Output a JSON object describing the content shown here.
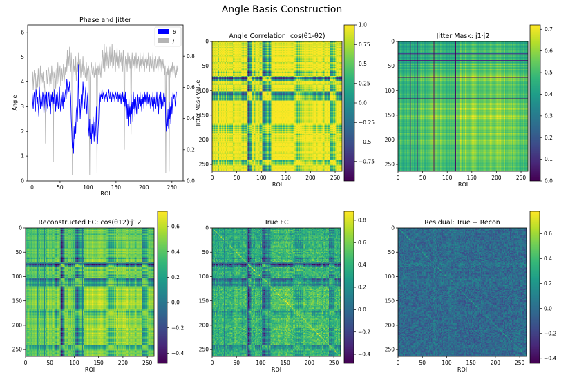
{
  "figure": {
    "title": "Angle Basis Construction"
  },
  "chart_data": [
    {
      "type": "line",
      "title": "Phase and Jitter",
      "xlabel": "ROI",
      "ylabel": "Angle",
      "y2label": "Jitter Mask Value",
      "xlim": [
        -8,
        270
      ],
      "ylim": [
        0,
        6.3
      ],
      "y2lim": [
        0,
        1.0
      ],
      "xticks": [
        0,
        50,
        100,
        150,
        200,
        250
      ],
      "yticks": [
        0,
        1,
        2,
        3,
        4,
        5,
        6
      ],
      "y2ticks": [
        0.0,
        0.2,
        0.4,
        0.6,
        0.8
      ],
      "legend_position": "top-right",
      "series": [
        {
          "name": "θ",
          "axis": "left",
          "color": "#0000ff",
          "values": [
            3.6,
            3.2,
            2.9,
            3.4,
            3.6,
            3.0,
            2.8,
            3.7,
            3.5,
            3.1,
            3.4,
            3.0,
            2.6,
            3.8,
            3.3,
            2.9,
            3.5,
            3.2,
            3.0,
            3.6,
            3.4,
            2.7,
            3.1,
            3.5,
            3.3,
            2.8,
            3.6,
            3.1,
            2.9,
            3.4,
            3.6,
            3.0,
            3.3,
            2.7,
            3.5,
            3.2,
            3.6,
            2.9,
            3.4,
            3.1,
            3.7,
            3.3,
            2.8,
            3.5,
            3.0,
            3.6,
            3.2,
            2.9,
            3.4,
            3.8,
            3.1,
            2.8,
            3.5,
            3.3,
            3.0,
            3.6,
            2.9,
            3.4,
            3.2,
            3.5,
            3.7,
            3.3,
            4.1,
            3.9,
            3.5,
            3.8,
            3.6,
            4.0,
            3.7,
            3.4,
            2.5,
            2.0,
            1.3,
            1.6,
            1.1,
            2.2,
            1.7,
            2.4,
            1.9,
            2.8,
            3.0,
            2.4,
            3.1,
            4.7,
            2.9,
            3.3,
            2.5,
            3.0,
            3.5,
            2.8,
            3.2,
            4.0,
            3.6,
            3.3,
            2.9,
            3.5,
            3.8,
            3.1,
            2.7,
            3.4,
            3.6,
            2.2,
            1.8,
            2.5,
            1.7,
            2.0,
            1.5,
            2.3,
            1.9,
            2.6,
            2.1,
            1.6,
            2.4,
            1.8,
            2.2,
            3.0,
            1.7,
            1.5,
            2.1,
            2.5,
            3.3,
            3.6,
            3.2,
            3.5,
            3.4,
            3.7,
            3.3,
            3.5,
            3.6,
            3.2,
            3.4,
            3.5,
            3.3,
            3.6,
            3.4,
            3.2,
            3.5,
            3.7,
            3.4,
            3.3,
            3.6,
            3.5,
            3.2,
            3.4,
            3.6,
            3.3,
            3.5,
            3.4,
            3.2,
            3.6,
            3.5,
            3.3,
            3.4,
            3.6,
            3.2,
            3.5,
            3.3,
            3.6,
            3.4,
            3.1,
            3.5,
            3.3,
            3.6,
            3.2,
            3.4,
            3.5,
            3.0,
            3.6,
            2.8,
            3.3,
            2.5,
            3.1,
            2.2,
            3.4,
            2.6,
            3.0,
            2.3,
            3.5,
            2.7,
            3.2,
            2.4,
            3.6,
            2.9,
            3.3,
            2.6,
            3.4,
            3.0,
            2.7,
            3.5,
            3.2,
            2.9,
            3.4,
            3.1,
            3.6,
            3.0,
            3.3,
            2.8,
            3.5,
            3.1,
            3.4,
            2.9,
            3.6,
            3.2,
            3.5,
            3.0,
            3.3,
            3.6,
            3.1,
            3.4,
            3.0,
            3.5,
            3.2,
            2.9,
            3.4,
            3.3,
            3.0,
            3.6,
            2.8,
            3.4,
            3.1,
            3.5,
            2.9,
            3.2,
            3.6,
            3.0,
            3.4,
            2.7,
            3.3,
            3.5,
            3.1,
            3.6,
            2.9,
            3.4,
            3.2,
            3.0,
            3.5,
            3.6,
            3.2,
            3.4,
            2.4,
            2.0,
            2.6,
            2.2,
            2.9,
            2.1,
            3.2,
            2.5,
            3.0,
            2.3,
            3.4,
            2.7,
            3.1,
            3.6,
            3.3,
            3.5,
            3.4,
            3.0,
            3.3,
            3.6
          ]
        },
        {
          "name": "j",
          "axis": "right",
          "color": "#b4b4b4",
          "values": [
            0.62,
            0.7,
            0.58,
            0.66,
            0.71,
            0.64,
            0.69,
            0.57,
            0.63,
            0.68,
            0.6,
            0.72,
            0.65,
            0.59,
            0.67,
            0.74,
            0.61,
            0.66,
            0.69,
            0.63,
            0.7,
            0.58,
            0.64,
            0.56,
            0.24,
            0.68,
            0.71,
            0.62,
            0.66,
            0.73,
            0.7,
            0.65,
            0.6,
            0.69,
            0.62,
            0.74,
            0.68,
            0.64,
            0.12,
            0.7,
            0.66,
            0.71,
            0.59,
            0.65,
            0.72,
            0.62,
            0.76,
            0.68,
            0.63,
            0.7,
            0.74,
            0.61,
            0.67,
            0.72,
            0.64,
            0.69,
            0.75,
            0.62,
            0.66,
            0.73,
            0.68,
            0.78,
            0.7,
            0.84,
            0.72,
            0.8,
            0.74,
            0.86,
            0.76,
            0.7,
            0.82,
            0.72,
            0.04,
            0.66,
            0.78,
            0.7,
            0.74,
            0.68,
            0.8,
            0.64,
            0.72,
            0.76,
            0.7,
            0.82,
            0.68,
            0.74,
            0.78,
            0.66,
            0.72,
            0.76,
            0.7,
            0.8,
            0.68,
            0.74,
            0.72,
            0.66,
            0.7,
            0.76,
            0.64,
            0.72,
            0.68,
            0.74,
            0.7,
            0.04,
            0.66,
            0.72,
            0.76,
            0.7,
            0.68,
            0.74,
            0.72,
            0.66,
            0.7,
            0.76,
            0.68,
            0.72,
            0.05,
            0.7,
            0.74,
            0.68,
            0.72,
            0.76,
            0.7,
            0.66,
            0.74,
            0.78,
            0.84,
            0.72,
            0.8,
            0.88,
            0.7,
            0.82,
            0.76,
            0.86,
            0.74,
            0.8,
            0.84,
            0.72,
            0.78,
            0.86,
            0.74,
            0.82,
            0.76,
            0.88,
            0.72,
            0.8,
            0.74,
            0.84,
            0.78,
            0.7,
            0.82,
            0.76,
            0.86,
            0.74,
            0.8,
            0.72,
            0.84,
            0.78,
            0.76,
            0.82,
            0.74,
            0.8,
            0.7,
            0.84,
            0.76,
            0.2,
            0.72,
            0.8,
            0.74,
            0.78,
            0.7,
            0.82,
            0.76,
            0.74,
            0.8,
            0.72,
            0.78,
            0.3,
            0.76,
            0.82,
            0.72,
            0.78,
            0.74,
            0.8,
            0.7,
            0.76,
            0.82,
            0.72,
            0.78,
            0.74,
            0.8,
            0.76,
            0.7,
            0.82,
            0.74,
            0.78,
            0.72,
            0.8,
            0.76,
            0.74,
            0.82,
            0.7,
            0.78,
            0.76,
            0.8,
            0.72,
            0.78,
            0.74,
            0.82,
            0.76,
            0.7,
            0.8,
            0.74,
            0.78,
            0.72,
            0.76,
            0.82,
            0.74,
            0.7,
            0.78,
            0.76,
            0.8,
            0.72,
            0.74,
            0.78,
            0.7,
            0.76,
            0.8,
            0.74,
            0.72,
            0.78,
            0.76,
            0.7,
            0.74,
            0.78,
            0.72,
            0.76,
            0.68,
            0.74,
            0.05,
            0.7,
            0.66,
            0.72,
            0.68,
            0.74,
            0.06,
            0.7,
            0.72,
            0.66,
            0.74,
            0.7,
            0.76,
            0.68,
            0.72,
            0.74,
            0.7,
            0.66,
            0.72,
            0.68,
            0.74,
            0.7,
            0.72
          ]
        }
      ]
    },
    {
      "type": "heatmap",
      "title": "Angle Correlation: cos(θ1-θ2)",
      "xlabel": "ROI",
      "ylabel": "",
      "xticks": [
        0,
        50,
        100,
        150,
        200,
        250
      ],
      "yticks": [
        0,
        50,
        100,
        150,
        200,
        250
      ],
      "size": 264,
      "clim": [
        -1.0,
        1.0
      ],
      "cbar_ticks": [
        -0.75,
        -0.5,
        -0.25,
        0.0,
        0.25,
        0.5,
        0.75,
        1.0
      ],
      "colormap": "viridis"
    },
    {
      "type": "heatmap",
      "title": "Jitter Mask: j1·j2",
      "xlabel": "ROI",
      "ylabel": "",
      "xticks": [
        0,
        50,
        100,
        150,
        200,
        250
      ],
      "yticks": [
        0,
        50,
        100,
        150,
        200,
        250
      ],
      "size": 264,
      "clim": [
        0.0,
        0.72
      ],
      "cbar_ticks": [
        0.0,
        0.1,
        0.2,
        0.3,
        0.4,
        0.5,
        0.6,
        0.7
      ],
      "colormap": "viridis"
    },
    {
      "type": "heatmap",
      "title": "Reconstructed FC: cos(θ12)·j12",
      "xlabel": "ROI",
      "ylabel": "",
      "xticks": [
        0,
        50,
        100,
        150,
        200,
        250
      ],
      "yticks": [
        0,
        50,
        100,
        150,
        200,
        250
      ],
      "size": 264,
      "clim": [
        -0.48,
        0.72
      ],
      "cbar_ticks": [
        -0.4,
        -0.2,
        0.0,
        0.2,
        0.4,
        0.6
      ],
      "colormap": "viridis"
    },
    {
      "type": "heatmap",
      "title": "True FC",
      "xlabel": "ROI",
      "ylabel": "",
      "xticks": [
        0,
        50,
        100,
        150,
        200,
        250
      ],
      "yticks": [
        0,
        50,
        100,
        150,
        200,
        250
      ],
      "size": 264,
      "clim": [
        -0.48,
        0.88
      ],
      "cbar_ticks": [
        -0.4,
        -0.2,
        0.0,
        0.2,
        0.4,
        0.6,
        0.8
      ],
      "colormap": "viridis"
    },
    {
      "type": "heatmap",
      "title": "Residual: True − Recon",
      "xlabel": "ROI",
      "ylabel": "",
      "xticks": [
        0,
        50,
        100,
        150,
        200,
        250
      ],
      "yticks": [
        0,
        50,
        100,
        150,
        200,
        250
      ],
      "size": 264,
      "clim": [
        -0.44,
        0.78
      ],
      "cbar_ticks": [
        -0.4,
        -0.2,
        0.0,
        0.2,
        0.4,
        0.6
      ],
      "colormap": "viridis"
    }
  ]
}
